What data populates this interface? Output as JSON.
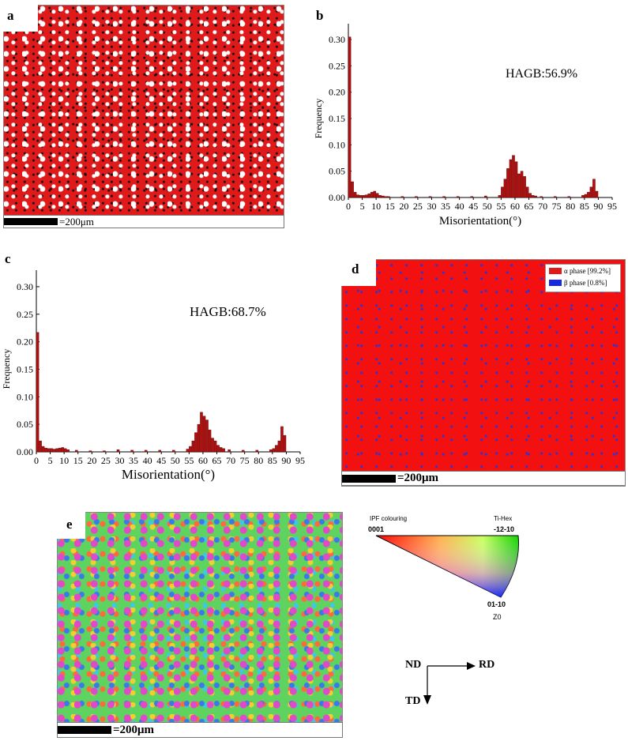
{
  "panels": {
    "a": {
      "letter": "a",
      "scale_label": "=200μm"
    },
    "b": {
      "letter": "b"
    },
    "c": {
      "letter": "c"
    },
    "d": {
      "letter": "d",
      "scale_label": "=200μm",
      "legend": [
        {
          "label": "α phase [99.2%]",
          "color": "#e01a1a"
        },
        {
          "label": "β phase [0.8%]",
          "color": "#1a2ad8"
        }
      ]
    },
    "e": {
      "letter": "e",
      "scale_label": "=200μm",
      "ipf": {
        "title": "IPF colouring",
        "phase": "Ti-Hex",
        "corner_left": "0001",
        "corner_right": "-12-10",
        "corner_bottom": "01-10",
        "axis": "Z0"
      },
      "axes": {
        "nd": "ND",
        "rd": "RD",
        "td": "TD"
      }
    }
  },
  "chart_data": [
    {
      "type": "bar",
      "panel": "b",
      "title": "",
      "annotation": "HAGB:56.9%",
      "xlabel": "Misorientation(°)",
      "ylabel": "Frequency",
      "xlim": [
        0,
        95
      ],
      "ylim": [
        0,
        0.33
      ],
      "xticks": [
        "0",
        "5",
        "10",
        "15",
        "20",
        "25",
        "30",
        "35",
        "40",
        "45",
        "50",
        "55",
        "60",
        "65",
        "70",
        "75",
        "80",
        "85",
        "90",
        "95"
      ],
      "yticks": [
        "0.00",
        "0.05",
        "0.10",
        "0.15",
        "0.20",
        "0.25",
        "0.30"
      ],
      "bin_width": 1,
      "x": [
        1,
        2,
        3,
        4,
        5,
        6,
        7,
        8,
        9,
        10,
        11,
        12,
        13,
        14,
        15,
        20,
        25,
        30,
        35,
        40,
        45,
        50,
        55,
        56,
        57,
        58,
        59,
        60,
        61,
        62,
        63,
        64,
        65,
        66,
        67,
        68,
        70,
        75,
        80,
        85,
        86,
        87,
        88,
        89,
        90
      ],
      "values": [
        0.305,
        0.03,
        0.01,
        0.005,
        0.004,
        0.004,
        0.005,
        0.007,
        0.01,
        0.012,
        0.008,
        0.004,
        0.003,
        0.002,
        0.002,
        0.002,
        0.002,
        0.002,
        0.002,
        0.002,
        0.002,
        0.003,
        0.004,
        0.02,
        0.035,
        0.055,
        0.072,
        0.08,
        0.068,
        0.045,
        0.05,
        0.04,
        0.02,
        0.008,
        0.004,
        0.003,
        0.002,
        0.002,
        0.002,
        0.004,
        0.006,
        0.01,
        0.02,
        0.035,
        0.012
      ]
    },
    {
      "type": "bar",
      "panel": "c",
      "title": "",
      "annotation": "HAGB:68.7%",
      "xlabel": "Misorientation(°)",
      "ylabel": "Frequency",
      "xlim": [
        0,
        95
      ],
      "ylim": [
        0,
        0.33
      ],
      "xticks": [
        "0",
        "5",
        "10",
        "15",
        "20",
        "25",
        "30",
        "35",
        "40",
        "45",
        "50",
        "55",
        "60",
        "65",
        "70",
        "75",
        "80",
        "85",
        "90",
        "95"
      ],
      "yticks": [
        "0.00",
        "0.05",
        "0.10",
        "0.15",
        "0.20",
        "0.25",
        "0.30"
      ],
      "bin_width": 1,
      "x": [
        1,
        2,
        3,
        4,
        5,
        6,
        7,
        8,
        9,
        10,
        11,
        12,
        15,
        20,
        25,
        30,
        35,
        40,
        45,
        50,
        55,
        56,
        57,
        58,
        59,
        60,
        61,
        62,
        63,
        64,
        65,
        66,
        67,
        68,
        70,
        75,
        80,
        85,
        86,
        87,
        88,
        89,
        90
      ],
      "values": [
        0.217,
        0.02,
        0.01,
        0.007,
        0.006,
        0.006,
        0.005,
        0.006,
        0.007,
        0.008,
        0.006,
        0.004,
        0.003,
        0.002,
        0.002,
        0.004,
        0.003,
        0.003,
        0.003,
        0.003,
        0.005,
        0.01,
        0.02,
        0.035,
        0.05,
        0.072,
        0.065,
        0.058,
        0.04,
        0.025,
        0.02,
        0.012,
        0.008,
        0.006,
        0.004,
        0.003,
        0.003,
        0.004,
        0.006,
        0.012,
        0.02,
        0.046,
        0.03
      ]
    }
  ]
}
